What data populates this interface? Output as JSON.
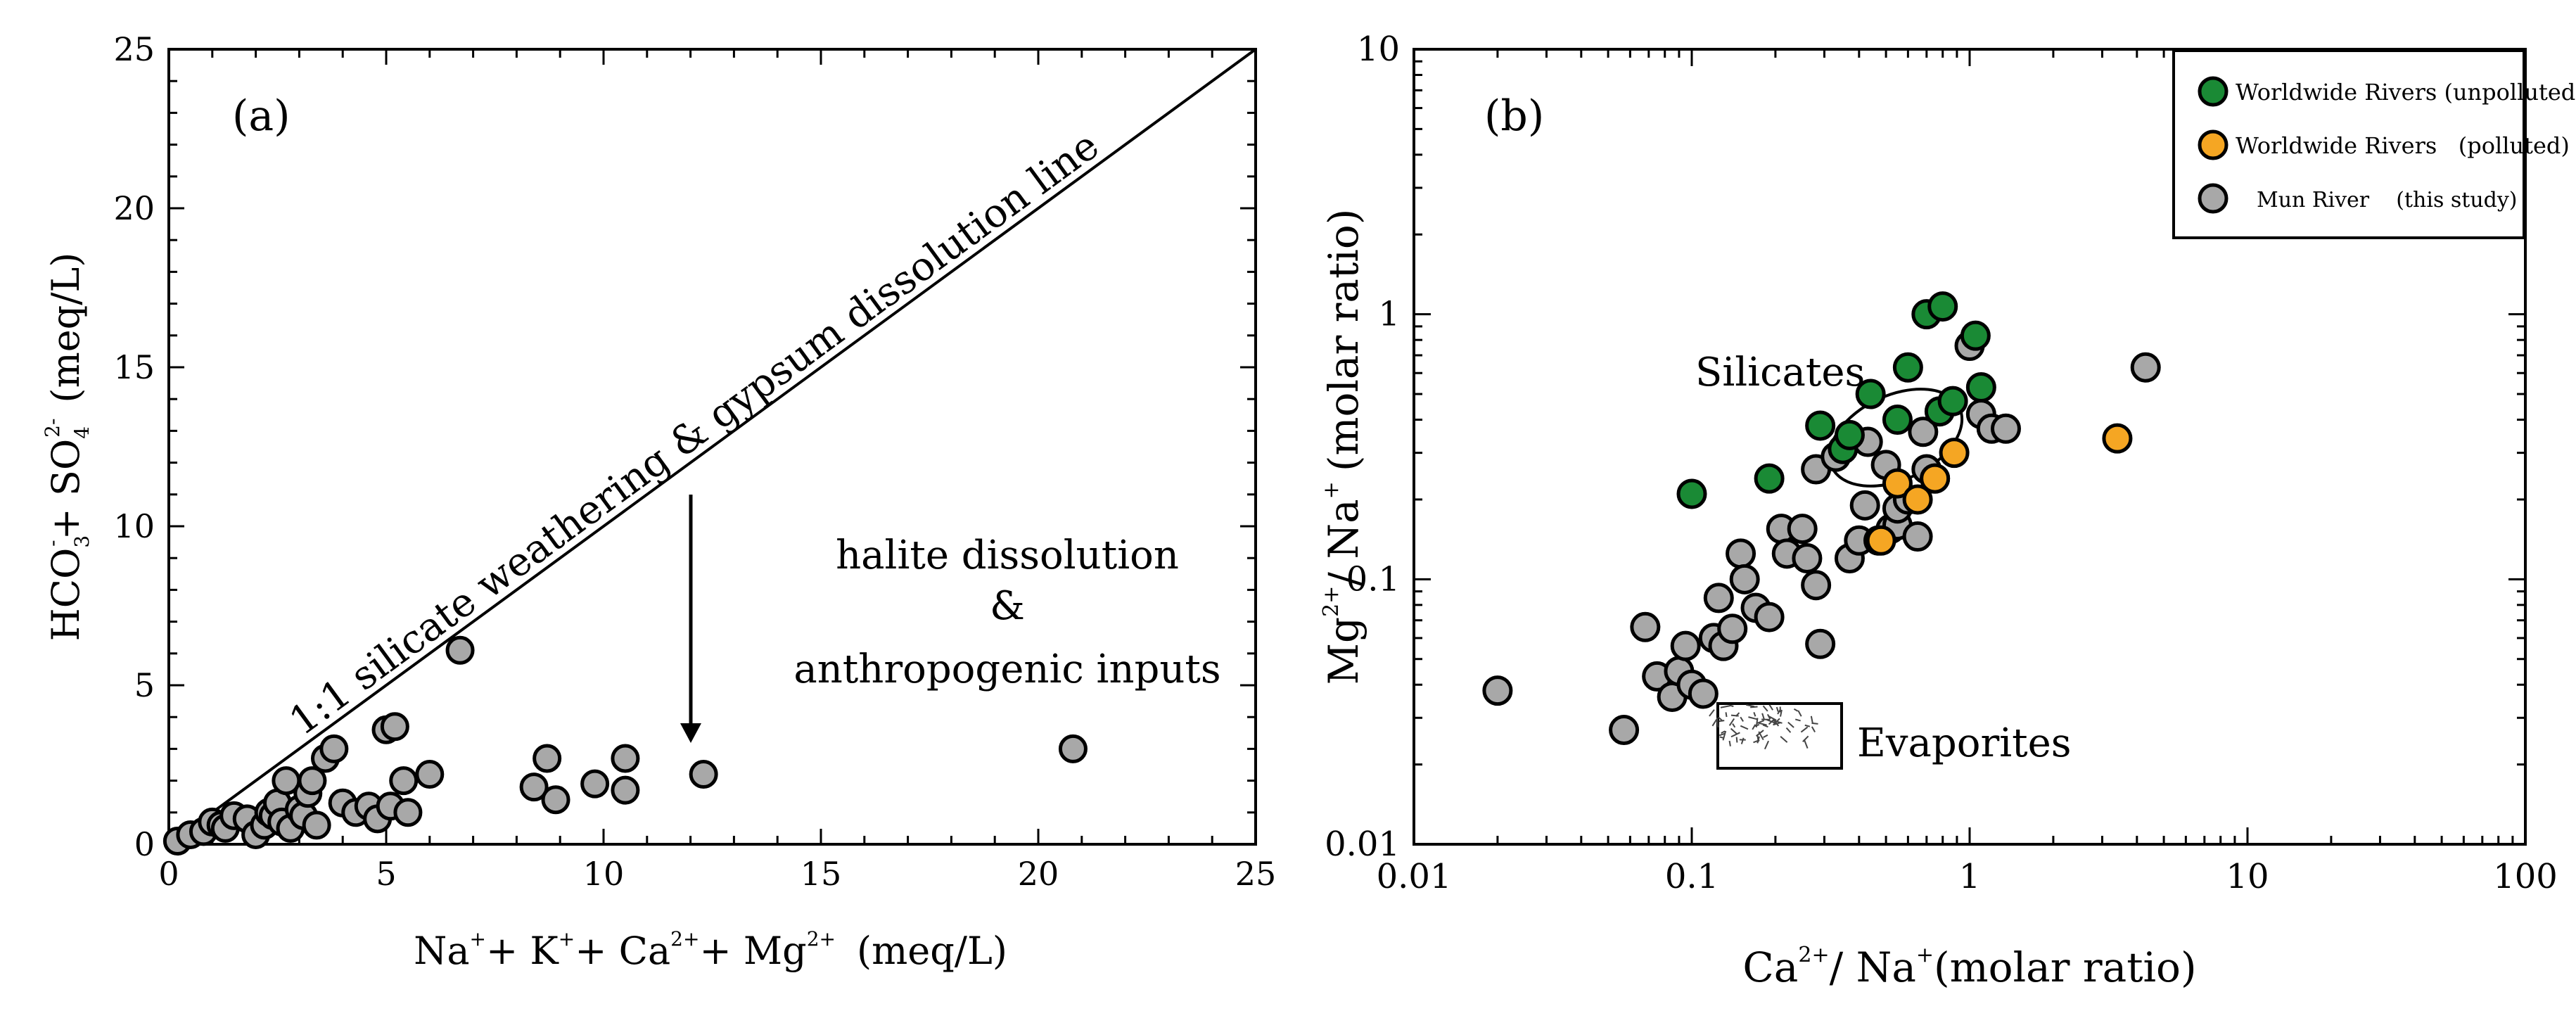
{
  "chart_data": [
    {
      "panel": "(a)",
      "type": "scatter",
      "xlabel": [
        "Na",
        "+",
        "+ K",
        "+",
        "+ Ca",
        "2+",
        "+ Mg",
        "2+",
        "(meq/L)"
      ],
      "ylabel": [
        "HCO",
        "3",
        "-",
        "+ SO",
        "4",
        "2-",
        "(meq/L)"
      ],
      "xlim": [
        0,
        25
      ],
      "ylim": [
        0,
        25
      ],
      "xticks": [
        "0",
        "5",
        "10",
        "15",
        "20",
        "25"
      ],
      "yticks": [
        "0",
        "5",
        "10",
        "15",
        "20",
        "25"
      ],
      "reference_line": {
        "label": "1:1 silicate weathering & gypsum dissolution line",
        "from": [
          0,
          0
        ],
        "to": [
          25,
          25
        ]
      },
      "annotation": [
        "halite dissolution",
        "&",
        "anthropogenic inputs"
      ],
      "arrow": {
        "from": [
          12,
          11
        ],
        "to": [
          12,
          3.2
        ]
      },
      "marker_color": "#a8a8a8",
      "series": [
        {
          "name": "Mun River",
          "points": [
            [
              0.2,
              0.1
            ],
            [
              0.5,
              0.3
            ],
            [
              0.8,
              0.4
            ],
            [
              1.0,
              0.7
            ],
            [
              1.2,
              0.6
            ],
            [
              1.3,
              0.5
            ],
            [
              1.5,
              0.9
            ],
            [
              1.8,
              0.8
            ],
            [
              2.0,
              0.3
            ],
            [
              2.2,
              0.6
            ],
            [
              2.3,
              1.0
            ],
            [
              2.4,
              0.9
            ],
            [
              2.5,
              1.3
            ],
            [
              2.6,
              0.7
            ],
            [
              2.7,
              2.0
            ],
            [
              2.8,
              0.5
            ],
            [
              3.0,
              1.1
            ],
            [
              3.1,
              0.9
            ],
            [
              3.2,
              1.6
            ],
            [
              3.3,
              2.0
            ],
            [
              3.4,
              0.6
            ],
            [
              3.6,
              2.7
            ],
            [
              3.8,
              3.0
            ],
            [
              4.0,
              1.3
            ],
            [
              4.3,
              1.0
            ],
            [
              4.6,
              1.2
            ],
            [
              4.8,
              0.8
            ],
            [
              5.0,
              3.6
            ],
            [
              5.1,
              1.2
            ],
            [
              5.2,
              3.7
            ],
            [
              5.4,
              2.0
            ],
            [
              5.5,
              1.0
            ],
            [
              6.0,
              2.2
            ],
            [
              6.7,
              6.1
            ],
            [
              8.4,
              1.8
            ],
            [
              8.7,
              2.7
            ],
            [
              8.9,
              1.4
            ],
            [
              9.8,
              1.9
            ],
            [
              10.5,
              2.7
            ],
            [
              10.5,
              1.7
            ],
            [
              12.3,
              2.2
            ],
            [
              20.8,
              3.0
            ]
          ]
        }
      ]
    },
    {
      "panel": "(b)",
      "type": "scatter",
      "xscale": "log",
      "yscale": "log",
      "xlabel": [
        "Ca",
        "2+",
        "/ Na",
        "+",
        "(molar ratio)"
      ],
      "ylabel": [
        "Mg",
        "2+",
        "/ Na",
        "+",
        "(molar ratio)"
      ],
      "xlim": [
        0.01,
        100
      ],
      "ylim": [
        0.01,
        10
      ],
      "xticks": [
        "0.01",
        "0.1",
        "1",
        "10",
        "100"
      ],
      "yticks": [
        "0.01",
        "0.1",
        "1",
        "10"
      ],
      "regions": [
        {
          "name": "Silicates",
          "center": [
            0.42,
            0.36
          ]
        },
        {
          "name": "Evaporites",
          "x_range": [
            0.11,
            0.3
          ],
          "y_range": [
            0.023,
            0.036
          ]
        }
      ],
      "legend": {
        "position": "top-right",
        "entries": [
          {
            "label": "Worldwide Rivers (unpolluted)",
            "color": "#1a8a35"
          },
          {
            "label": "Worldwide Rivers   (polluted)",
            "color": "#f5a623"
          },
          {
            "label": "Mun River    (this study)",
            "color": "#a8a8a8"
          }
        ]
      },
      "series": [
        {
          "name": "Mun River",
          "color": "#a8a8a8",
          "points": [
            [
              0.02,
              0.038
            ],
            [
              0.057,
              0.027
            ],
            [
              0.068,
              0.066
            ],
            [
              0.075,
              0.043
            ],
            [
              0.085,
              0.036
            ],
            [
              0.09,
              0.045
            ],
            [
              0.095,
              0.056
            ],
            [
              0.1,
              0.04
            ],
            [
              0.11,
              0.037
            ],
            [
              0.12,
              0.06
            ],
            [
              0.125,
              0.085
            ],
            [
              0.13,
              0.056
            ],
            [
              0.14,
              0.065
            ],
            [
              0.15,
              0.125
            ],
            [
              0.155,
              0.1
            ],
            [
              0.17,
              0.078
            ],
            [
              0.19,
              0.072
            ],
            [
              0.21,
              0.155
            ],
            [
              0.22,
              0.125
            ],
            [
              0.25,
              0.155
            ],
            [
              0.26,
              0.12
            ],
            [
              0.28,
              0.095
            ],
            [
              0.29,
              0.057
            ],
            [
              0.28,
              0.26
            ],
            [
              0.33,
              0.29
            ],
            [
              0.37,
              0.12
            ],
            [
              0.4,
              0.14
            ],
            [
              0.42,
              0.19
            ],
            [
              0.43,
              0.33
            ],
            [
              0.47,
              0.14
            ],
            [
              0.5,
              0.27
            ],
            [
              0.52,
              0.155
            ],
            [
              0.55,
              0.16
            ],
            [
              0.55,
              0.185
            ],
            [
              0.6,
              0.2
            ],
            [
              0.65,
              0.145
            ],
            [
              0.68,
              0.36
            ],
            [
              0.7,
              0.26
            ],
            [
              0.75,
              0.24
            ],
            [
              1.0,
              0.76
            ],
            [
              1.1,
              0.42
            ],
            [
              1.2,
              0.37
            ],
            [
              1.35,
              0.37
            ],
            [
              4.3,
              0.63
            ]
          ]
        },
        {
          "name": "Worldwide Rivers (unpolluted)",
          "color": "#1a8a35",
          "points": [
            [
              0.1,
              0.21
            ],
            [
              0.19,
              0.24
            ],
            [
              0.29,
              0.38
            ],
            [
              0.35,
              0.31
            ],
            [
              0.37,
              0.35
            ],
            [
              0.44,
              0.5
            ],
            [
              0.55,
              0.4
            ],
            [
              0.6,
              0.63
            ],
            [
              0.7,
              1.0
            ],
            [
              0.8,
              1.07
            ],
            [
              0.78,
              0.43
            ],
            [
              0.87,
              0.47
            ],
            [
              1.05,
              0.83
            ],
            [
              1.1,
              0.53
            ]
          ]
        },
        {
          "name": "Worldwide Rivers (polluted)",
          "color": "#f5a623",
          "points": [
            [
              0.48,
              0.14
            ],
            [
              0.55,
              0.23
            ],
            [
              0.65,
              0.2
            ],
            [
              0.75,
              0.24
            ],
            [
              0.88,
              0.3
            ],
            [
              3.4,
              0.34
            ]
          ]
        }
      ]
    }
  ]
}
